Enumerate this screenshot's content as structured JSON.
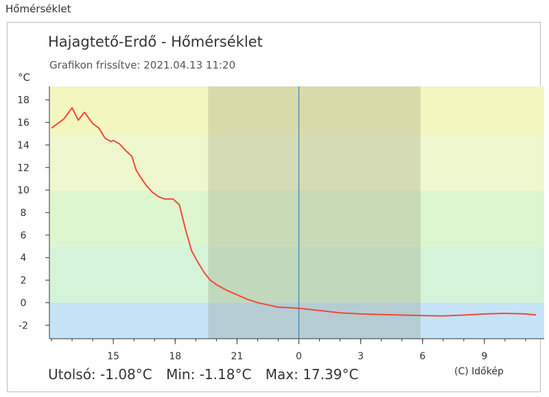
{
  "page": {
    "heading": "Hőmérséklet"
  },
  "chart_data": {
    "type": "line",
    "title": "Hajagtető-Erdő - Hőmérséklet",
    "subtitle": "Grafikon frissítve: 2021.04.13 11:20",
    "ylabel": "°C",
    "ylim": [
      -3.2,
      19.2
    ],
    "yticks": [
      -2,
      0,
      2,
      4,
      6,
      8,
      10,
      12,
      14,
      16,
      18
    ],
    "xlim": [
      11.9,
      35.9
    ],
    "xticks": [
      15,
      18,
      21,
      24,
      27,
      30,
      33
    ],
    "xtick_labels": [
      "15",
      "18",
      "21",
      "0",
      "3",
      "6",
      "9"
    ],
    "x_unit": "hours since 2021.04.12 00:00",
    "night_band": [
      19.6,
      29.9
    ],
    "now_marker": 24,
    "color_bands": [
      {
        "from": -3.2,
        "to": 0,
        "color": "#c5e3f6"
      },
      {
        "from": 0,
        "to": 5,
        "color": "#d4f3d8"
      },
      {
        "from": 5,
        "to": 10,
        "color": "#def6cf"
      },
      {
        "from": 10,
        "to": 15,
        "color": "#eef7cd"
      },
      {
        "from": 15,
        "to": 19.2,
        "color": "#f4f6bf"
      }
    ],
    "series": [
      {
        "color": "#f0483a",
        "x": [
          12.0,
          12.3,
          12.6,
          13.0,
          13.3,
          13.6,
          13.8,
          14.0,
          14.3,
          14.6,
          14.9,
          15.0,
          15.3,
          15.6,
          15.9,
          16.1,
          16.3,
          16.6,
          16.9,
          17.2,
          17.5,
          17.9,
          18.2,
          18.5,
          18.8,
          19.1,
          19.4,
          19.7,
          20.0,
          20.5,
          21.0,
          21.5,
          22.0,
          22.5,
          23.0,
          23.5,
          24.0,
          25.0,
          26.0,
          27.0,
          28.0,
          29.0,
          30.0,
          31.0,
          32.0,
          33.0,
          34.0,
          35.0,
          35.5
        ],
        "y": [
          15.5,
          15.9,
          16.3,
          17.3,
          16.2,
          16.9,
          16.4,
          15.9,
          15.5,
          14.6,
          14.3,
          14.4,
          14.1,
          13.5,
          13.0,
          11.8,
          11.2,
          10.4,
          9.8,
          9.4,
          9.2,
          9.2,
          8.7,
          6.5,
          4.6,
          3.6,
          2.7,
          2.0,
          1.6,
          1.1,
          0.7,
          0.3,
          0.0,
          -0.2,
          -0.4,
          -0.45,
          -0.5,
          -0.7,
          -0.9,
          -1.0,
          -1.05,
          -1.1,
          -1.15,
          -1.18,
          -1.1,
          -1.0,
          -0.95,
          -1.0,
          -1.08
        ]
      }
    ]
  },
  "stats": {
    "last": "Utolsó: -1.08°C",
    "min": "Min: -1.18°C",
    "max": "Max: 17.39°C"
  },
  "copyright": "(C) Időkép"
}
